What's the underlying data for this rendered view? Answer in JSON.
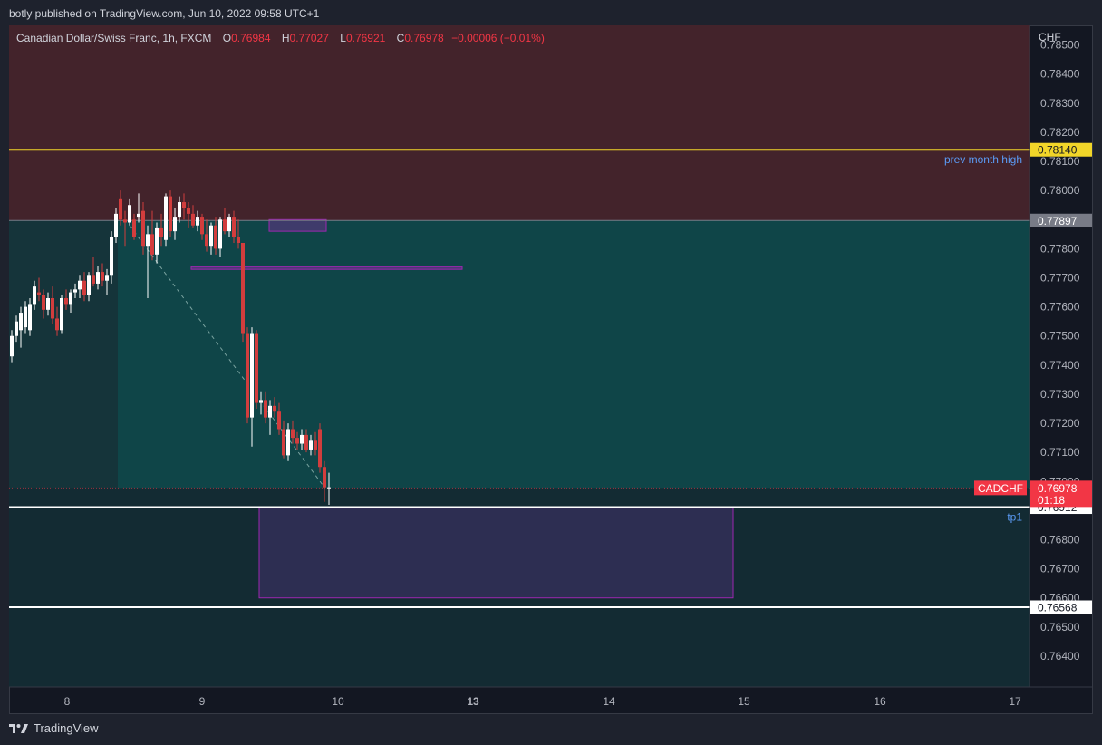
{
  "header": {
    "publish_line": "botly published on TradingView.com, Jun 10, 2022 09:58 UTC+1"
  },
  "legend": {
    "symbol": "Canadian Dollar/Swiss Franc, 1h, FXCM",
    "o_label": "O",
    "o": "0.76984",
    "h_label": "H",
    "h": "0.77027",
    "l_label": "L",
    "l": "0.76921",
    "c_label": "C",
    "c": "0.76978",
    "change": "−0.00006 (−0.01%)"
  },
  "footer": {
    "brand": "TradingView"
  },
  "colors": {
    "bg": "#131722",
    "up": "#ffffff",
    "down": "#d23d3d",
    "zone_upper": "#43232b",
    "zone_mid": "#0f4548",
    "zone_left": "#15343a",
    "zone_lower": "#132b33",
    "yellow_line": "#f2d629",
    "purple": "#9c27b0",
    "red_badge": "#f23645"
  },
  "chart_data": {
    "type": "candlestick",
    "symbol": "CADCHF",
    "interval": "1h",
    "currency": "CHF",
    "x_tick_labels": [
      "8",
      "9",
      "10",
      "13",
      "14",
      "15",
      "16",
      "17"
    ],
    "y_tick_labels": [
      "0.78500",
      "0.78400",
      "0.78300",
      "0.78200",
      "0.78100",
      "0.78000",
      "0.77800",
      "0.77700",
      "0.77600",
      "0.77500",
      "0.77400",
      "0.77300",
      "0.77200",
      "0.77100",
      "0.77000",
      "0.76800",
      "0.76700",
      "0.76600",
      "0.76500",
      "0.76400"
    ],
    "ylim": [
      0.7635,
      0.7853
    ],
    "candles": [
      [
        0.7743,
        0.7752,
        0.7741,
        0.775
      ],
      [
        0.775,
        0.7757,
        0.7748,
        0.7755
      ],
      [
        0.7752,
        0.776,
        0.7746,
        0.7758
      ],
      [
        0.7753,
        0.7762,
        0.7751,
        0.776
      ],
      [
        0.7752,
        0.7763,
        0.775,
        0.7761
      ],
      [
        0.7761,
        0.7769,
        0.7759,
        0.7767
      ],
      [
        0.7765,
        0.777,
        0.7762,
        0.7764
      ],
      [
        0.7764,
        0.7766,
        0.7756,
        0.7759
      ],
      [
        0.7759,
        0.7765,
        0.7757,
        0.7763
      ],
      [
        0.7763,
        0.7767,
        0.7754,
        0.7756
      ],
      [
        0.7756,
        0.776,
        0.775,
        0.7752
      ],
      [
        0.7752,
        0.7764,
        0.7751,
        0.7763
      ],
      [
        0.7763,
        0.7766,
        0.7759,
        0.7761
      ],
      [
        0.7761,
        0.7766,
        0.7758,
        0.7765
      ],
      [
        0.7765,
        0.7768,
        0.7763,
        0.7766
      ],
      [
        0.7766,
        0.7771,
        0.7763,
        0.7769
      ],
      [
        0.7769,
        0.7772,
        0.7762,
        0.7764
      ],
      [
        0.7764,
        0.7772,
        0.7762,
        0.7771
      ],
      [
        0.7771,
        0.7777,
        0.7767,
        0.7768
      ],
      [
        0.7768,
        0.7774,
        0.7766,
        0.7772
      ],
      [
        0.7772,
        0.7775,
        0.7767,
        0.7769
      ],
      [
        0.7769,
        0.7773,
        0.7764,
        0.7771
      ],
      [
        0.7771,
        0.7786,
        0.7768,
        0.7784
      ],
      [
        0.7784,
        0.7794,
        0.7782,
        0.7792
      ],
      [
        0.7797,
        0.78,
        0.7788,
        0.779
      ],
      [
        0.779,
        0.7793,
        0.7781,
        0.7789
      ],
      [
        0.7789,
        0.7797,
        0.7788,
        0.7795
      ],
      [
        0.779,
        0.7792,
        0.7783,
        0.7784
      ],
      [
        0.7791,
        0.7799,
        0.7789,
        0.7792
      ],
      [
        0.7793,
        0.7796,
        0.7778,
        0.7781
      ],
      [
        0.7781,
        0.7788,
        0.7763,
        0.7785
      ],
      [
        0.7785,
        0.7793,
        0.7776,
        0.7778
      ],
      [
        0.7778,
        0.7789,
        0.7775,
        0.7787
      ],
      [
        0.7787,
        0.7792,
        0.7781,
        0.7784
      ],
      [
        0.7783,
        0.7799,
        0.7781,
        0.7798
      ],
      [
        0.7798,
        0.78,
        0.7784,
        0.7786
      ],
      [
        0.7786,
        0.7794,
        0.7783,
        0.7791
      ],
      [
        0.7791,
        0.7798,
        0.7789,
        0.7796
      ],
      [
        0.7796,
        0.7799,
        0.779,
        0.7794
      ],
      [
        0.7794,
        0.7796,
        0.7787,
        0.7792
      ],
      [
        0.7792,
        0.7795,
        0.7787,
        0.7788
      ],
      [
        0.7788,
        0.7793,
        0.7786,
        0.7791
      ],
      [
        0.7791,
        0.7792,
        0.7783,
        0.7785
      ],
      [
        0.7785,
        0.779,
        0.7779,
        0.7781
      ],
      [
        0.7781,
        0.7789,
        0.7778,
        0.7788
      ],
      [
        0.7788,
        0.7791,
        0.7778,
        0.778
      ],
      [
        0.778,
        0.7791,
        0.7777,
        0.779
      ],
      [
        0.779,
        0.7794,
        0.7785,
        0.7786
      ],
      [
        0.7786,
        0.7792,
        0.7784,
        0.7791
      ],
      [
        0.7791,
        0.7793,
        0.7782,
        0.7784
      ],
      [
        0.7784,
        0.779,
        0.778,
        0.7782
      ],
      [
        0.7782,
        0.7782,
        0.7748,
        0.7751
      ],
      [
        0.7751,
        0.7753,
        0.772,
        0.7722
      ],
      [
        0.7722,
        0.7753,
        0.7712,
        0.7751
      ],
      [
        0.7751,
        0.7752,
        0.7725,
        0.7727
      ],
      [
        0.7727,
        0.7731,
        0.7723,
        0.7728
      ],
      [
        0.7728,
        0.7731,
        0.772,
        0.7722
      ],
      [
        0.7722,
        0.7728,
        0.7716,
        0.7726
      ],
      [
        0.7726,
        0.7729,
        0.7722,
        0.7724
      ],
      [
        0.7724,
        0.7727,
        0.7716,
        0.7718
      ],
      [
        0.7718,
        0.7721,
        0.7708,
        0.7709
      ],
      [
        0.7709,
        0.772,
        0.7707,
        0.7718
      ],
      [
        0.7718,
        0.7721,
        0.7713,
        0.7715
      ],
      [
        0.7715,
        0.7717,
        0.7711,
        0.7713
      ],
      [
        0.7713,
        0.7718,
        0.7711,
        0.7716
      ],
      [
        0.7716,
        0.7718,
        0.771,
        0.7711
      ],
      [
        0.7711,
        0.7716,
        0.7709,
        0.7714
      ],
      [
        0.7714,
        0.7717,
        0.7709,
        0.7711
      ],
      [
        0.7718,
        0.772,
        0.7703,
        0.7705
      ],
      [
        0.7705,
        0.7707,
        0.7693,
        0.7698
      ],
      [
        0.7698,
        0.7703,
        0.7692,
        0.7698
      ]
    ],
    "horizontal_levels": [
      {
        "price": 0.7814,
        "label": "0.78140",
        "text": "prev month high",
        "color": "#f2d629"
      },
      {
        "price": 0.77897,
        "label": "0.77897",
        "text": "",
        "color": "#787b86"
      },
      {
        "price": 0.76912,
        "label": "0.76912",
        "text": "tp1",
        "color": "#ffffff"
      },
      {
        "price": 0.76568,
        "label": "0.76568",
        "text": "",
        "color": "#ffffff"
      }
    ],
    "last_price": {
      "symbol": "CADCHF",
      "price": "0.76978",
      "countdown": "01:18"
    }
  }
}
